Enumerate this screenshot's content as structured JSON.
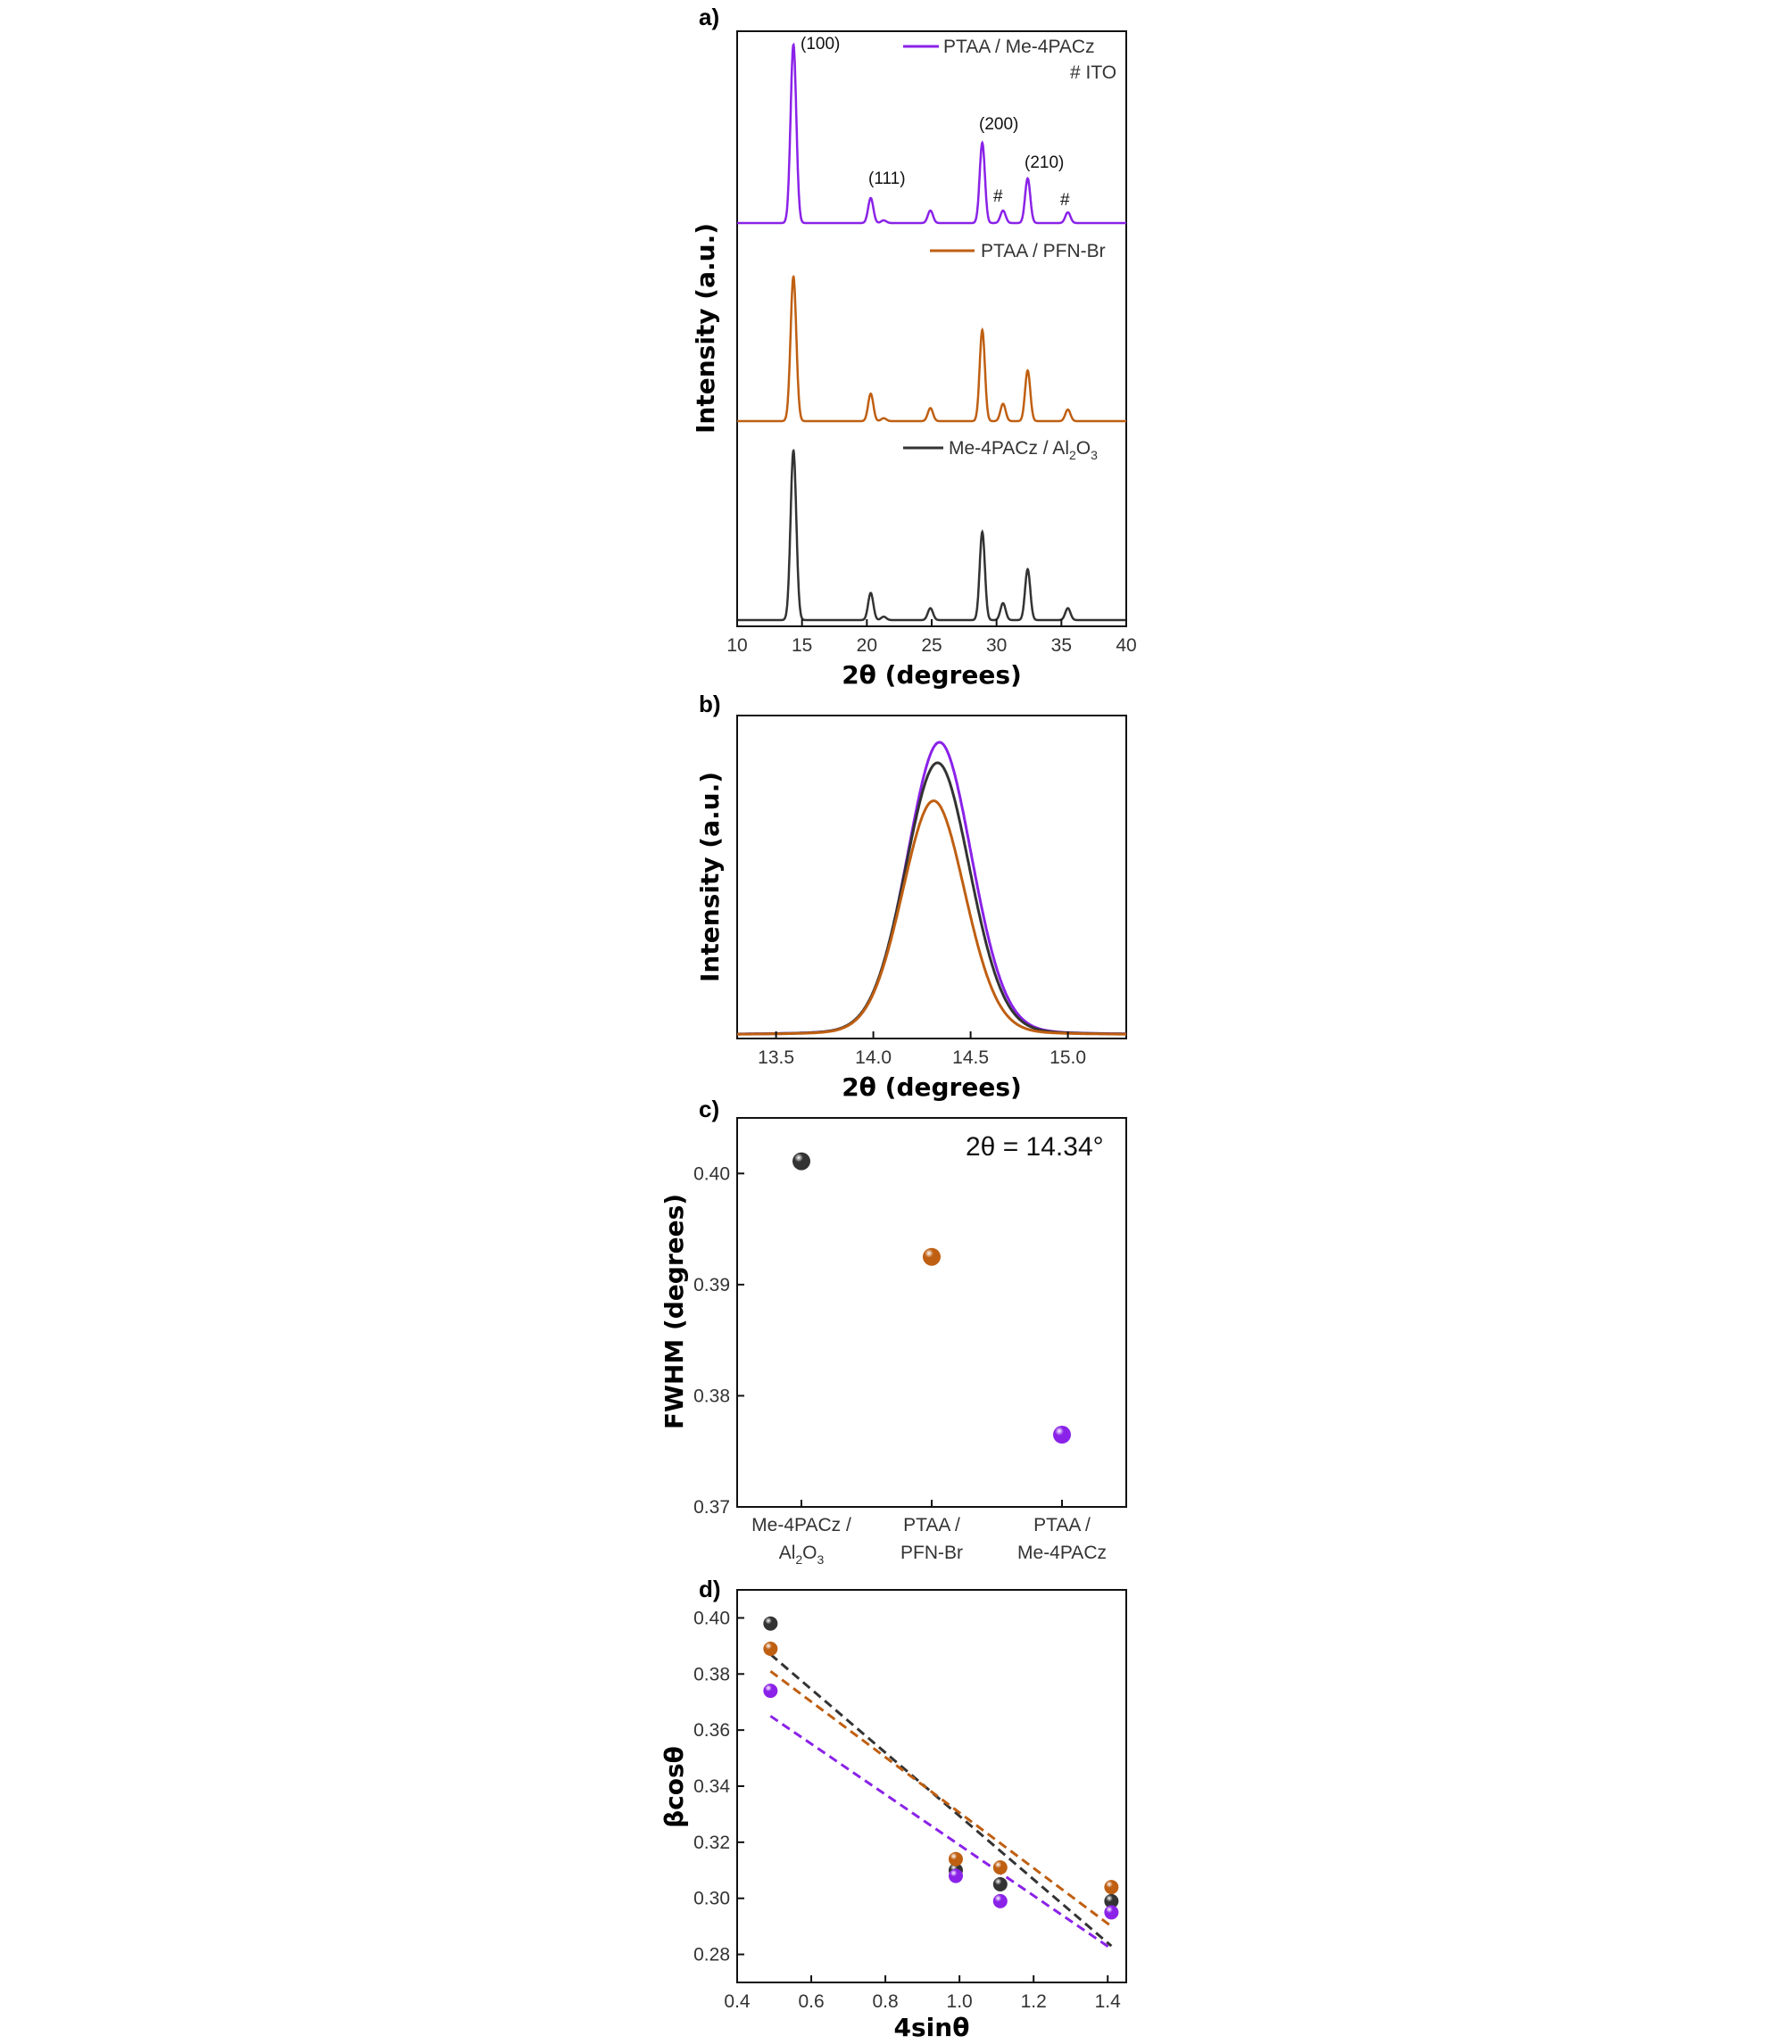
{
  "colors": {
    "ptaa_me4pacz": "#8a22e8",
    "ptaa_pfnbr": "#bf5f12",
    "me4pacz_al2o3": "#333333"
  },
  "chart_data": [
    {
      "panel": "a)",
      "type": "line",
      "xlabel": "2θ (degrees)",
      "ylabel": "Intensity (a.u.)",
      "xlim": [
        10,
        40
      ],
      "xticks": [
        "10",
        "15",
        "20",
        "25",
        "30",
        "35",
        "40"
      ],
      "offset_stack": true,
      "series": [
        {
          "name": "PTAA / Me-4PACz",
          "legend_extra": "# ITO",
          "color": "#8a22e8",
          "peaks": [
            {
              "x": 14.34,
              "h": 1.0,
              "w": 0.22
            },
            {
              "x": 20.3,
              "h": 0.14,
              "w": 0.2
            },
            {
              "x": 21.3,
              "h": 0.015,
              "w": 0.2
            },
            {
              "x": 24.9,
              "h": 0.07,
              "w": 0.2
            },
            {
              "x": 28.9,
              "h": 0.45,
              "w": 0.2
            },
            {
              "x": 30.5,
              "h": 0.07,
              "w": 0.2
            },
            {
              "x": 32.4,
              "h": 0.25,
              "w": 0.2
            },
            {
              "x": 35.5,
              "h": 0.06,
              "w": 0.2
            }
          ]
        },
        {
          "name": "PTAA / PFN-Br",
          "color": "#bf5f12",
          "peaks": [
            {
              "x": 14.34,
              "h": 1.0,
              "w": 0.22
            },
            {
              "x": 20.3,
              "h": 0.19,
              "w": 0.2
            },
            {
              "x": 21.3,
              "h": 0.02,
              "w": 0.2
            },
            {
              "x": 24.9,
              "h": 0.09,
              "w": 0.2
            },
            {
              "x": 28.9,
              "h": 0.63,
              "w": 0.2
            },
            {
              "x": 30.5,
              "h": 0.12,
              "w": 0.2
            },
            {
              "x": 32.4,
              "h": 0.35,
              "w": 0.2
            },
            {
              "x": 35.5,
              "h": 0.08,
              "w": 0.2
            }
          ]
        },
        {
          "name": "Me-4PACz / Al",
          "name_sub1": "2",
          "name_mid": "O",
          "name_sub2": "3",
          "color": "#333333",
          "peaks": [
            {
              "x": 14.34,
              "h": 1.0,
              "w": 0.22
            },
            {
              "x": 20.3,
              "h": 0.16,
              "w": 0.2
            },
            {
              "x": 21.3,
              "h": 0.02,
              "w": 0.2
            },
            {
              "x": 24.9,
              "h": 0.07,
              "w": 0.2
            },
            {
              "x": 28.9,
              "h": 0.52,
              "w": 0.2
            },
            {
              "x": 30.5,
              "h": 0.1,
              "w": 0.2
            },
            {
              "x": 32.4,
              "h": 0.3,
              "w": 0.2
            },
            {
              "x": 35.5,
              "h": 0.07,
              "w": 0.2
            }
          ]
        }
      ],
      "annotations": [
        {
          "text": "(100)",
          "x": 16.5
        },
        {
          "text": "(111)",
          "x": 21.7
        },
        {
          "text": "(200)",
          "x": 30.5
        },
        {
          "text": "(210)",
          "x": 34.0
        },
        {
          "text": "#",
          "x": 30.4
        },
        {
          "text": "#",
          "x": 35.5
        }
      ]
    },
    {
      "panel": "b)",
      "type": "line",
      "xlabel": "2θ (degrees)",
      "ylabel": "Intensity (a.u.)",
      "xlim": [
        13.3,
        15.3
      ],
      "xticks": [
        "13.5",
        "14.0",
        "14.5",
        "15.0"
      ],
      "series": [
        {
          "color": "#8a22e8",
          "center": 14.34,
          "peak": 1.0,
          "sigma": 0.17
        },
        {
          "color": "#333333",
          "center": 14.33,
          "peak": 0.93,
          "sigma": 0.17
        },
        {
          "color": "#bf5f12",
          "center": 14.31,
          "peak": 0.8,
          "sigma": 0.165
        }
      ]
    },
    {
      "panel": "c)",
      "type": "scatter",
      "ylabel": "FWHM (degrees)",
      "ylim": [
        0.37,
        0.405
      ],
      "yticks": [
        "0.37",
        "0.38",
        "0.39",
        "0.40"
      ],
      "annotation": "2θ = 14.34°",
      "categories": [
        {
          "line1": "Me-4PACz /",
          "line2_main": "Al",
          "line2_sub1": "2",
          "line2_mid": "O",
          "line2_sub2": "3"
        },
        {
          "line1": "PTAA /",
          "line2_main": "PFN-Br"
        },
        {
          "line1": "PTAA /",
          "line2_main": "Me-4PACz"
        }
      ],
      "values": [
        0.4011,
        0.3925,
        0.3765
      ],
      "colors": [
        "#333333",
        "#bf5f12",
        "#8a22e8"
      ]
    },
    {
      "panel": "d)",
      "type": "scatter",
      "xlabel": "4sinθ",
      "ylabel": "βcosθ",
      "xlim": [
        0.4,
        1.45
      ],
      "ylim": [
        0.27,
        0.41
      ],
      "xticks": [
        "0.4",
        "0.6",
        "0.8",
        "1.0",
        "1.2",
        "1.4"
      ],
      "yticks": [
        "0.28",
        "0.30",
        "0.32",
        "0.34",
        "0.36",
        "0.38",
        "0.40"
      ],
      "series": [
        {
          "color": "#333333",
          "x": [
            0.49,
            0.99,
            1.11,
            1.41
          ],
          "y": [
            0.398,
            0.31,
            0.305,
            0.299
          ],
          "fit": [
            [
              0.49,
              0.387
            ],
            [
              1.41,
              0.283
            ]
          ]
        },
        {
          "color": "#bf5f12",
          "x": [
            0.49,
            0.99,
            1.11,
            1.41
          ],
          "y": [
            0.389,
            0.314,
            0.311,
            0.304
          ],
          "fit": [
            [
              0.49,
              0.381
            ],
            [
              1.41,
              0.29
            ]
          ]
        },
        {
          "color": "#8a22e8",
          "x": [
            0.49,
            0.99,
            1.11,
            1.41
          ],
          "y": [
            0.374,
            0.308,
            0.299,
            0.295
          ],
          "fit": [
            [
              0.49,
              0.365
            ],
            [
              1.41,
              0.282
            ]
          ]
        }
      ]
    }
  ]
}
